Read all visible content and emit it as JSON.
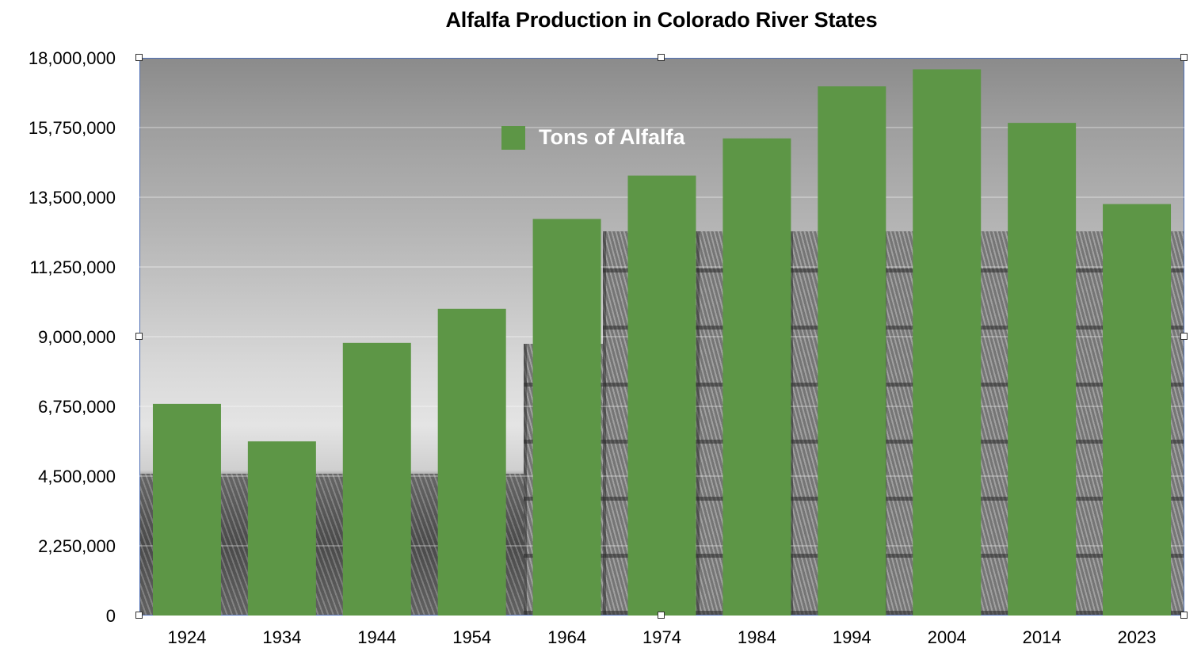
{
  "chart_data": {
    "type": "bar",
    "title": "Alfalfa Production in Colorado River States",
    "categories": [
      "1924",
      "1934",
      "1944",
      "1954",
      "1964",
      "1974",
      "1984",
      "1994",
      "2004",
      "2014",
      "2023"
    ],
    "series": [
      {
        "name": "Tons of Alfalfa",
        "color": "#5d9646",
        "values": [
          6830000,
          5620000,
          8800000,
          9900000,
          12800000,
          14200000,
          15400000,
          17080000,
          17630000,
          15900000,
          13280000
        ]
      }
    ],
    "ylim": [
      0,
      18000000
    ],
    "yticks": [
      0,
      2250000,
      4500000,
      6750000,
      9000000,
      11250000,
      13500000,
      15750000,
      18000000
    ],
    "ytick_labels": [
      "0",
      "2,250,000",
      "4,500,000",
      "6,750,000",
      "9,000,000",
      "11,250,000",
      "13,500,000",
      "15,750,000",
      "18,000,000"
    ],
    "grid": true,
    "legend_position": "top-center"
  }
}
